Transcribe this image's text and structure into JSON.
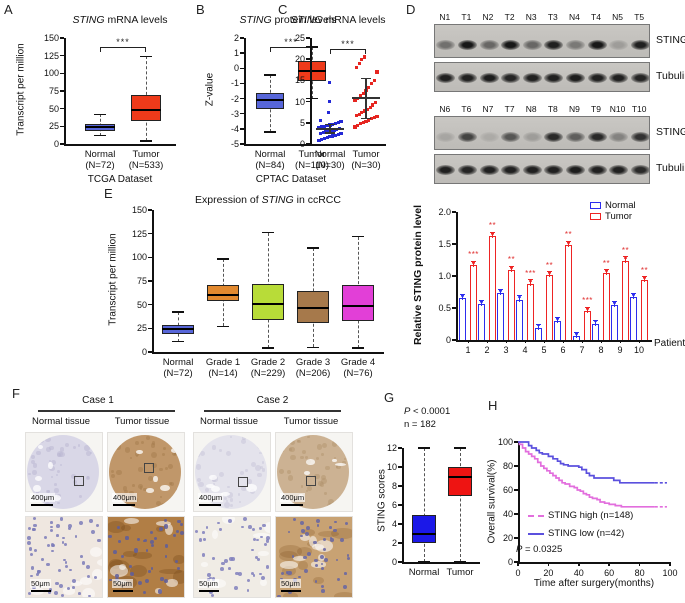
{
  "panel_labels": {
    "A": "A",
    "B": "B",
    "C": "C",
    "D": "D",
    "E": "E",
    "F": "F",
    "G": "G",
    "H": "H"
  },
  "panelD": {
    "legend": {
      "normal": "Normal",
      "tumor": "Tumor"
    },
    "blots": [
      {
        "lanes": [
          "N1",
          "T1",
          "N2",
          "T2",
          "N3",
          "T3",
          "N4",
          "T4",
          "N5",
          "T5"
        ],
        "rows": [
          {
            "label": "STING",
            "intensities": [
              0.45,
              0.95,
              0.5,
              0.95,
              0.5,
              0.9,
              0.4,
              0.95,
              0.2,
              0.9
            ]
          },
          {
            "label": "Tubulin",
            "intensities": [
              0.9,
              0.9,
              0.92,
              0.88,
              0.9,
              0.9,
              0.92,
              0.9,
              0.9,
              0.88
            ]
          }
        ]
      },
      {
        "lanes": [
          "N6",
          "T6",
          "N7",
          "T7",
          "N8",
          "T8",
          "N9",
          "T9",
          "N10",
          "T10"
        ],
        "rows": [
          {
            "label": "STING",
            "intensities": [
              0.15,
              0.7,
              0.12,
              0.6,
              0.2,
              0.85,
              0.55,
              0.85,
              0.35,
              0.8
            ]
          },
          {
            "label": "Tubulin",
            "intensities": [
              0.9,
              0.88,
              0.9,
              0.9,
              0.9,
              0.9,
              0.92,
              0.9,
              0.9,
              0.85
            ]
          }
        ]
      }
    ]
  },
  "panelF": {
    "cases": [
      {
        "title": "Case 1",
        "col1": "Normal tissue",
        "col2": "Tumor tissue"
      },
      {
        "title": "Case 2",
        "col1": "Normal tissue",
        "col2": "Tumor tissue"
      }
    ],
    "scale_top": "400μm",
    "scale_bottom": "50μm",
    "tissues": [
      {
        "case": "Case 1",
        "type": "Normal tissue",
        "core_color": "#d9d7e7",
        "core_speck": "#b9b5d2",
        "detail_bg": "#efe7e0",
        "nucleus_color": "#7b7bb8",
        "nuclei": 62,
        "patches": "none"
      },
      {
        "case": "Case 1",
        "type": "Tumor tissue",
        "core_color": "#c0976a",
        "core_speck": "#a37c4c",
        "detail_bg": "#b17e45",
        "nucleus_color": "#5d5d9e",
        "nuclei": 40,
        "patches": "strong-brown"
      },
      {
        "case": "Case 2",
        "type": "Normal tissue",
        "core_color": "#e4e3ec",
        "core_speck": "#c6c4d8",
        "detail_bg": "#f0ece5",
        "nucleus_color": "#8080bd",
        "nuclei": 48,
        "patches": "none"
      },
      {
        "case": "Case 2",
        "type": "Tumor tissue",
        "core_color": "#ccb293",
        "core_speck": "#b2946e",
        "detail_bg": "#c8a273",
        "nucleus_color": "#6565a5",
        "nuclei": 46,
        "patches": "moderate-brown"
      }
    ]
  },
  "chart_data": [
    {
      "type": "box",
      "panel": "A",
      "title_italic": "STING",
      "title_rest": " mRNA levels",
      "ylabel": "Transcript per million",
      "xlabel": "TCGA Dataset",
      "sig": "***",
      "ylim": [
        0,
        150
      ],
      "yticks": [
        0,
        25,
        50,
        75,
        100,
        125,
        150
      ],
      "boxes": [
        {
          "label": "Normal",
          "sub": "(N=72)",
          "color": "#5766d9",
          "whisker_low": 12,
          "q1": 19,
          "median": 24,
          "q3": 28,
          "whisker_high": 42
        },
        {
          "label": "Tumor",
          "sub": "(N=533)",
          "color": "#ee3a1a",
          "whisker_low": 4,
          "q1": 32,
          "median": 48,
          "q3": 70,
          "whisker_high": 124
        }
      ]
    },
    {
      "type": "box",
      "panel": "B",
      "title_italic": "STING",
      "title_rest": " protein levels",
      "ylabel": "Z-value",
      "xlabel": "CPTAC Dataset",
      "sig": "***",
      "ylim": [
        -5,
        2
      ],
      "yticks": [
        2,
        1,
        0,
        -1,
        -2,
        -3,
        -4,
        -5
      ],
      "boxes": [
        {
          "label": "Normal",
          "sub": "(N=84)",
          "color": "#5766d9",
          "whisker_low": -4.2,
          "q1": -2.7,
          "median": -2.1,
          "q3": -1.65,
          "whisker_high": -0.45
        },
        {
          "label": "Tumor",
          "sub": "(N=110)",
          "color": "#ee3a1a",
          "whisker_low": -2.0,
          "q1": -0.85,
          "median": -0.15,
          "q3": 0.5,
          "whisker_high": 1.4
        }
      ]
    },
    {
      "type": "scatter",
      "panel": "C",
      "title_italic": "STING",
      "title_rest": " mRNA levels",
      "sig": "***",
      "ylim": [
        0,
        25
      ],
      "yticks": [
        0,
        5,
        10,
        15,
        20,
        25
      ],
      "groups": [
        {
          "label": "Normal",
          "sub": "(N=30)",
          "color": "#2328d6",
          "mean": 3.6,
          "err_low": 2.6,
          "err_high": 4.6,
          "values": [
            0.8,
            1.0,
            1.3,
            1.5,
            1.7,
            1.9,
            2.0,
            2.2,
            2.4,
            2.5,
            2.7,
            2.9,
            3.0,
            3.1,
            3.3,
            3.5,
            3.6,
            3.8,
            4.0,
            4.1,
            4.3,
            4.5,
            4.6,
            4.8,
            5.0,
            5.3,
            5.5,
            7.5,
            10.0,
            14.5
          ]
        },
        {
          "label": "Tumor",
          "sub": "(N=30)",
          "color": "#e62520",
          "mean": 10.8,
          "err_low": 6.0,
          "err_high": 15.5,
          "values": [
            4.0,
            4.4,
            4.8,
            5.0,
            5.3,
            5.6,
            6.0,
            6.2,
            6.5,
            6.8,
            7.0,
            7.4,
            7.8,
            8.2,
            8.7,
            9.2,
            9.7,
            10.2,
            10.8,
            11.3,
            12.0,
            12.6,
            13.3,
            14.2,
            15.0,
            17.0,
            18.0,
            19.0,
            20.0,
            20.5
          ]
        }
      ]
    },
    {
      "type": "bar",
      "panel": "D",
      "ylabel": "Relative STING protein level",
      "xlabel": "Patient No.",
      "ylim": [
        0,
        2
      ],
      "yticks": [
        0,
        0.5,
        1,
        1.5,
        2
      ],
      "ytick_labels": [
        "0",
        "0.5",
        "1.0",
        "1.5",
        "2.0"
      ],
      "categories": [
        "1",
        "2",
        "3",
        "4",
        "5",
        "6",
        "7",
        "8",
        "9",
        "10"
      ],
      "err": 0.06,
      "series": [
        {
          "name": "Normal",
          "color": "#2d2dee",
          "values": [
            0.65,
            0.56,
            0.73,
            0.63,
            0.19,
            0.29,
            0.06,
            0.25,
            0.54,
            0.67
          ]
        },
        {
          "name": "Tumor",
          "color": "#ee2424",
          "values": [
            1.17,
            1.62,
            1.09,
            0.88,
            1.01,
            1.48,
            0.45,
            1.04,
            1.24,
            0.93
          ]
        }
      ],
      "sig": [
        "***",
        "**",
        "**",
        "***",
        "**",
        "**",
        "***",
        "**",
        "**",
        "**"
      ]
    },
    {
      "type": "box",
      "panel": "E",
      "title_pre": "Expression of ",
      "title_italic": "STING",
      "title_post": " in ccRCC",
      "ylabel": "Transcript per million",
      "ylim": [
        0,
        150
      ],
      "yticks": [
        0,
        25,
        50,
        75,
        100,
        125,
        150
      ],
      "boxes": [
        {
          "label": "Normal",
          "sub": "(N=72)",
          "color": "#5766d9",
          "whisker_low": 11,
          "q1": 19,
          "median": 24,
          "q3": 29,
          "whisker_high": 42
        },
        {
          "label": "Grade 1",
          "sub": "(N=14)",
          "color": "#e2892f",
          "whisker_low": 27,
          "q1": 54,
          "median": 60,
          "q3": 71,
          "whisker_high": 98
        },
        {
          "label": "Grade 2",
          "sub": "(N=229)",
          "color": "#b8dc38",
          "whisker_low": 4,
          "q1": 34,
          "median": 51,
          "q3": 72,
          "whisker_high": 126
        },
        {
          "label": "Grade 3",
          "sub": "(N=206)",
          "color": "#a6794b",
          "whisker_low": 5,
          "q1": 31,
          "median": 46,
          "q3": 64,
          "whisker_high": 110
        },
        {
          "label": "Grade 4",
          "sub": "(N=76)",
          "color": "#e23fd7",
          "whisker_low": 4,
          "q1": 33,
          "median": 49,
          "q3": 71,
          "whisker_high": 122
        }
      ]
    },
    {
      "type": "box",
      "panel": "G",
      "p_italic": "P",
      "p_rest": " < 0.0001",
      "n_line": "n = 182",
      "ylabel": "STING scores",
      "ylim": [
        0,
        12
      ],
      "yticks": [
        0,
        2,
        4,
        6,
        8,
        10,
        12
      ],
      "boxes": [
        {
          "label": "Normal",
          "sub": "",
          "color": "#1b18e8",
          "whisker_low": 0,
          "q1": 2,
          "median": 3,
          "q3": 5,
          "whisker_high": 12
        },
        {
          "label": "Tumor",
          "sub": "",
          "color": "#ee1412",
          "whisker_low": 0,
          "q1": 7,
          "median": 9,
          "q3": 10,
          "whisker_high": 12
        }
      ]
    },
    {
      "type": "line",
      "panel": "H",
      "ylabel": "Overall survival(%)",
      "xlabel": "Time after surgery(months)",
      "p_italic": "P",
      "p_rest": " = 0.0325",
      "xlim": [
        0,
        100
      ],
      "ylim": [
        0,
        100
      ],
      "xticks": [
        0,
        20,
        40,
        60,
        80,
        100
      ],
      "yticks": [
        0,
        20,
        40,
        60,
        80,
        100
      ],
      "series": [
        {
          "name": "STING high (n=148)",
          "color": "#e26edd",
          "dash": true,
          "points": [
            [
              0,
              100
            ],
            [
              1,
              98
            ],
            [
              3,
              95
            ],
            [
              5,
              92
            ],
            [
              7,
              90
            ],
            [
              9,
              88
            ],
            [
              11,
              86
            ],
            [
              13,
              83
            ],
            [
              15,
              80
            ],
            [
              17,
              78
            ],
            [
              19,
              76
            ],
            [
              21,
              74
            ],
            [
              23,
              72
            ],
            [
              25,
              70
            ],
            [
              27,
              68
            ],
            [
              29,
              66
            ],
            [
              31,
              65
            ],
            [
              34,
              63
            ],
            [
              37,
              62
            ],
            [
              39,
              60
            ],
            [
              41,
              59
            ],
            [
              43,
              57
            ],
            [
              45,
              56
            ],
            [
              47,
              54
            ],
            [
              49,
              53
            ],
            [
              52,
              52
            ],
            [
              54,
              50
            ],
            [
              57,
              49
            ],
            [
              60,
              48
            ],
            [
              64,
              47
            ],
            [
              68,
              46
            ],
            [
              90,
              46
            ]
          ]
        },
        {
          "name": "STING low (n=42)",
          "color": "#5b50de",
          "dash": false,
          "points": [
            [
              0,
              100
            ],
            [
              7,
              100
            ],
            [
              7,
              97
            ],
            [
              9,
              95
            ],
            [
              12,
              93
            ],
            [
              14,
              91
            ],
            [
              16,
              90
            ],
            [
              20,
              88
            ],
            [
              23,
              86
            ],
            [
              26,
              84
            ],
            [
              28,
              82
            ],
            [
              30,
              81
            ],
            [
              33,
              80
            ],
            [
              40,
              79
            ],
            [
              42,
              77
            ],
            [
              45,
              74
            ],
            [
              47,
              72
            ],
            [
              50,
              70
            ],
            [
              62,
              70
            ],
            [
              63,
              68
            ],
            [
              67,
              66
            ],
            [
              90,
              66
            ]
          ]
        }
      ]
    }
  ]
}
